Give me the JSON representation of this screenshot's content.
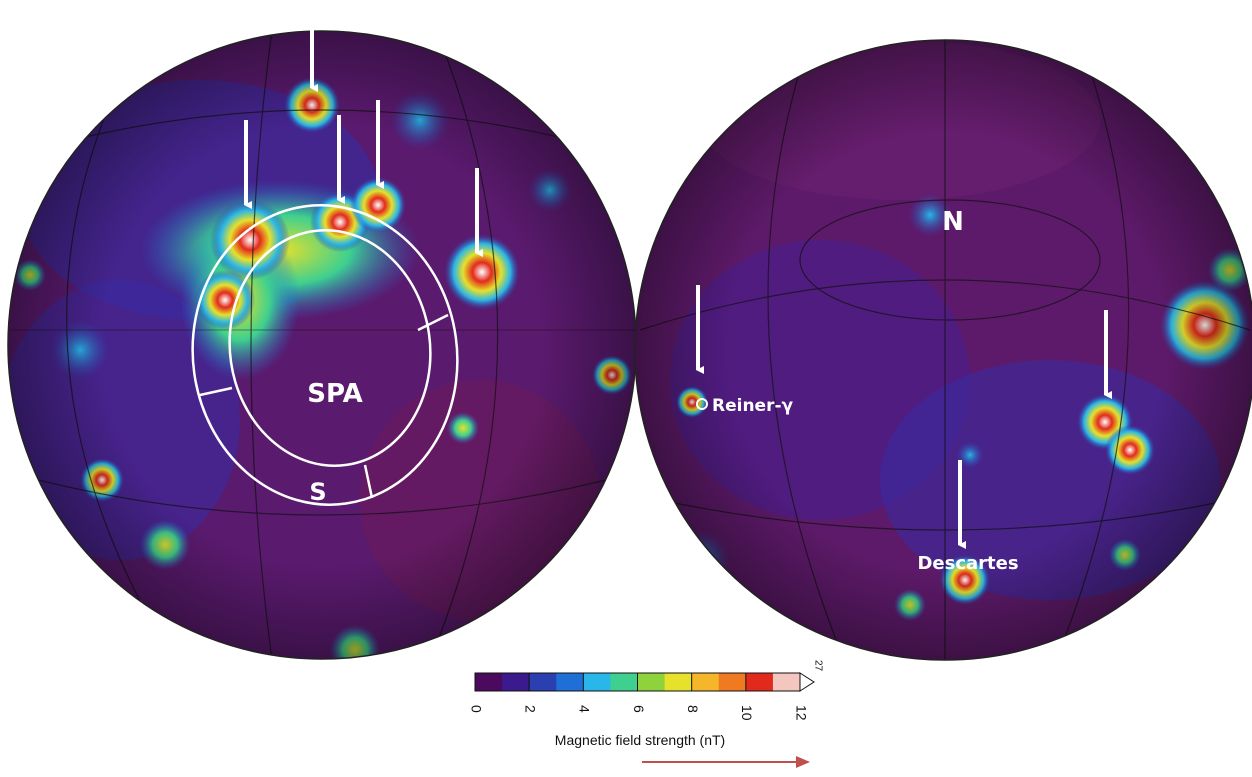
{
  "map": {
    "labels": {
      "spa": "SPA",
      "s": "S",
      "n": "N",
      "reiner": "Reiner-γ",
      "descartes": "Descartes"
    }
  },
  "colorbar": {
    "title": "Magnetic field strength (nT)",
    "lim": [
      0,
      12
    ],
    "ticks": [
      0,
      2,
      4,
      6,
      8,
      10,
      12
    ],
    "max_label": 27,
    "colors": [
      "#4b0a5e",
      "#3a1a8c",
      "#2a3fb0",
      "#1f6fd6",
      "#29b6e8",
      "#3fd08f",
      "#8ed23c",
      "#e6e12a",
      "#f5b62a",
      "#f07a22",
      "#e22a1c",
      "#f3c6c0"
    ]
  }
}
